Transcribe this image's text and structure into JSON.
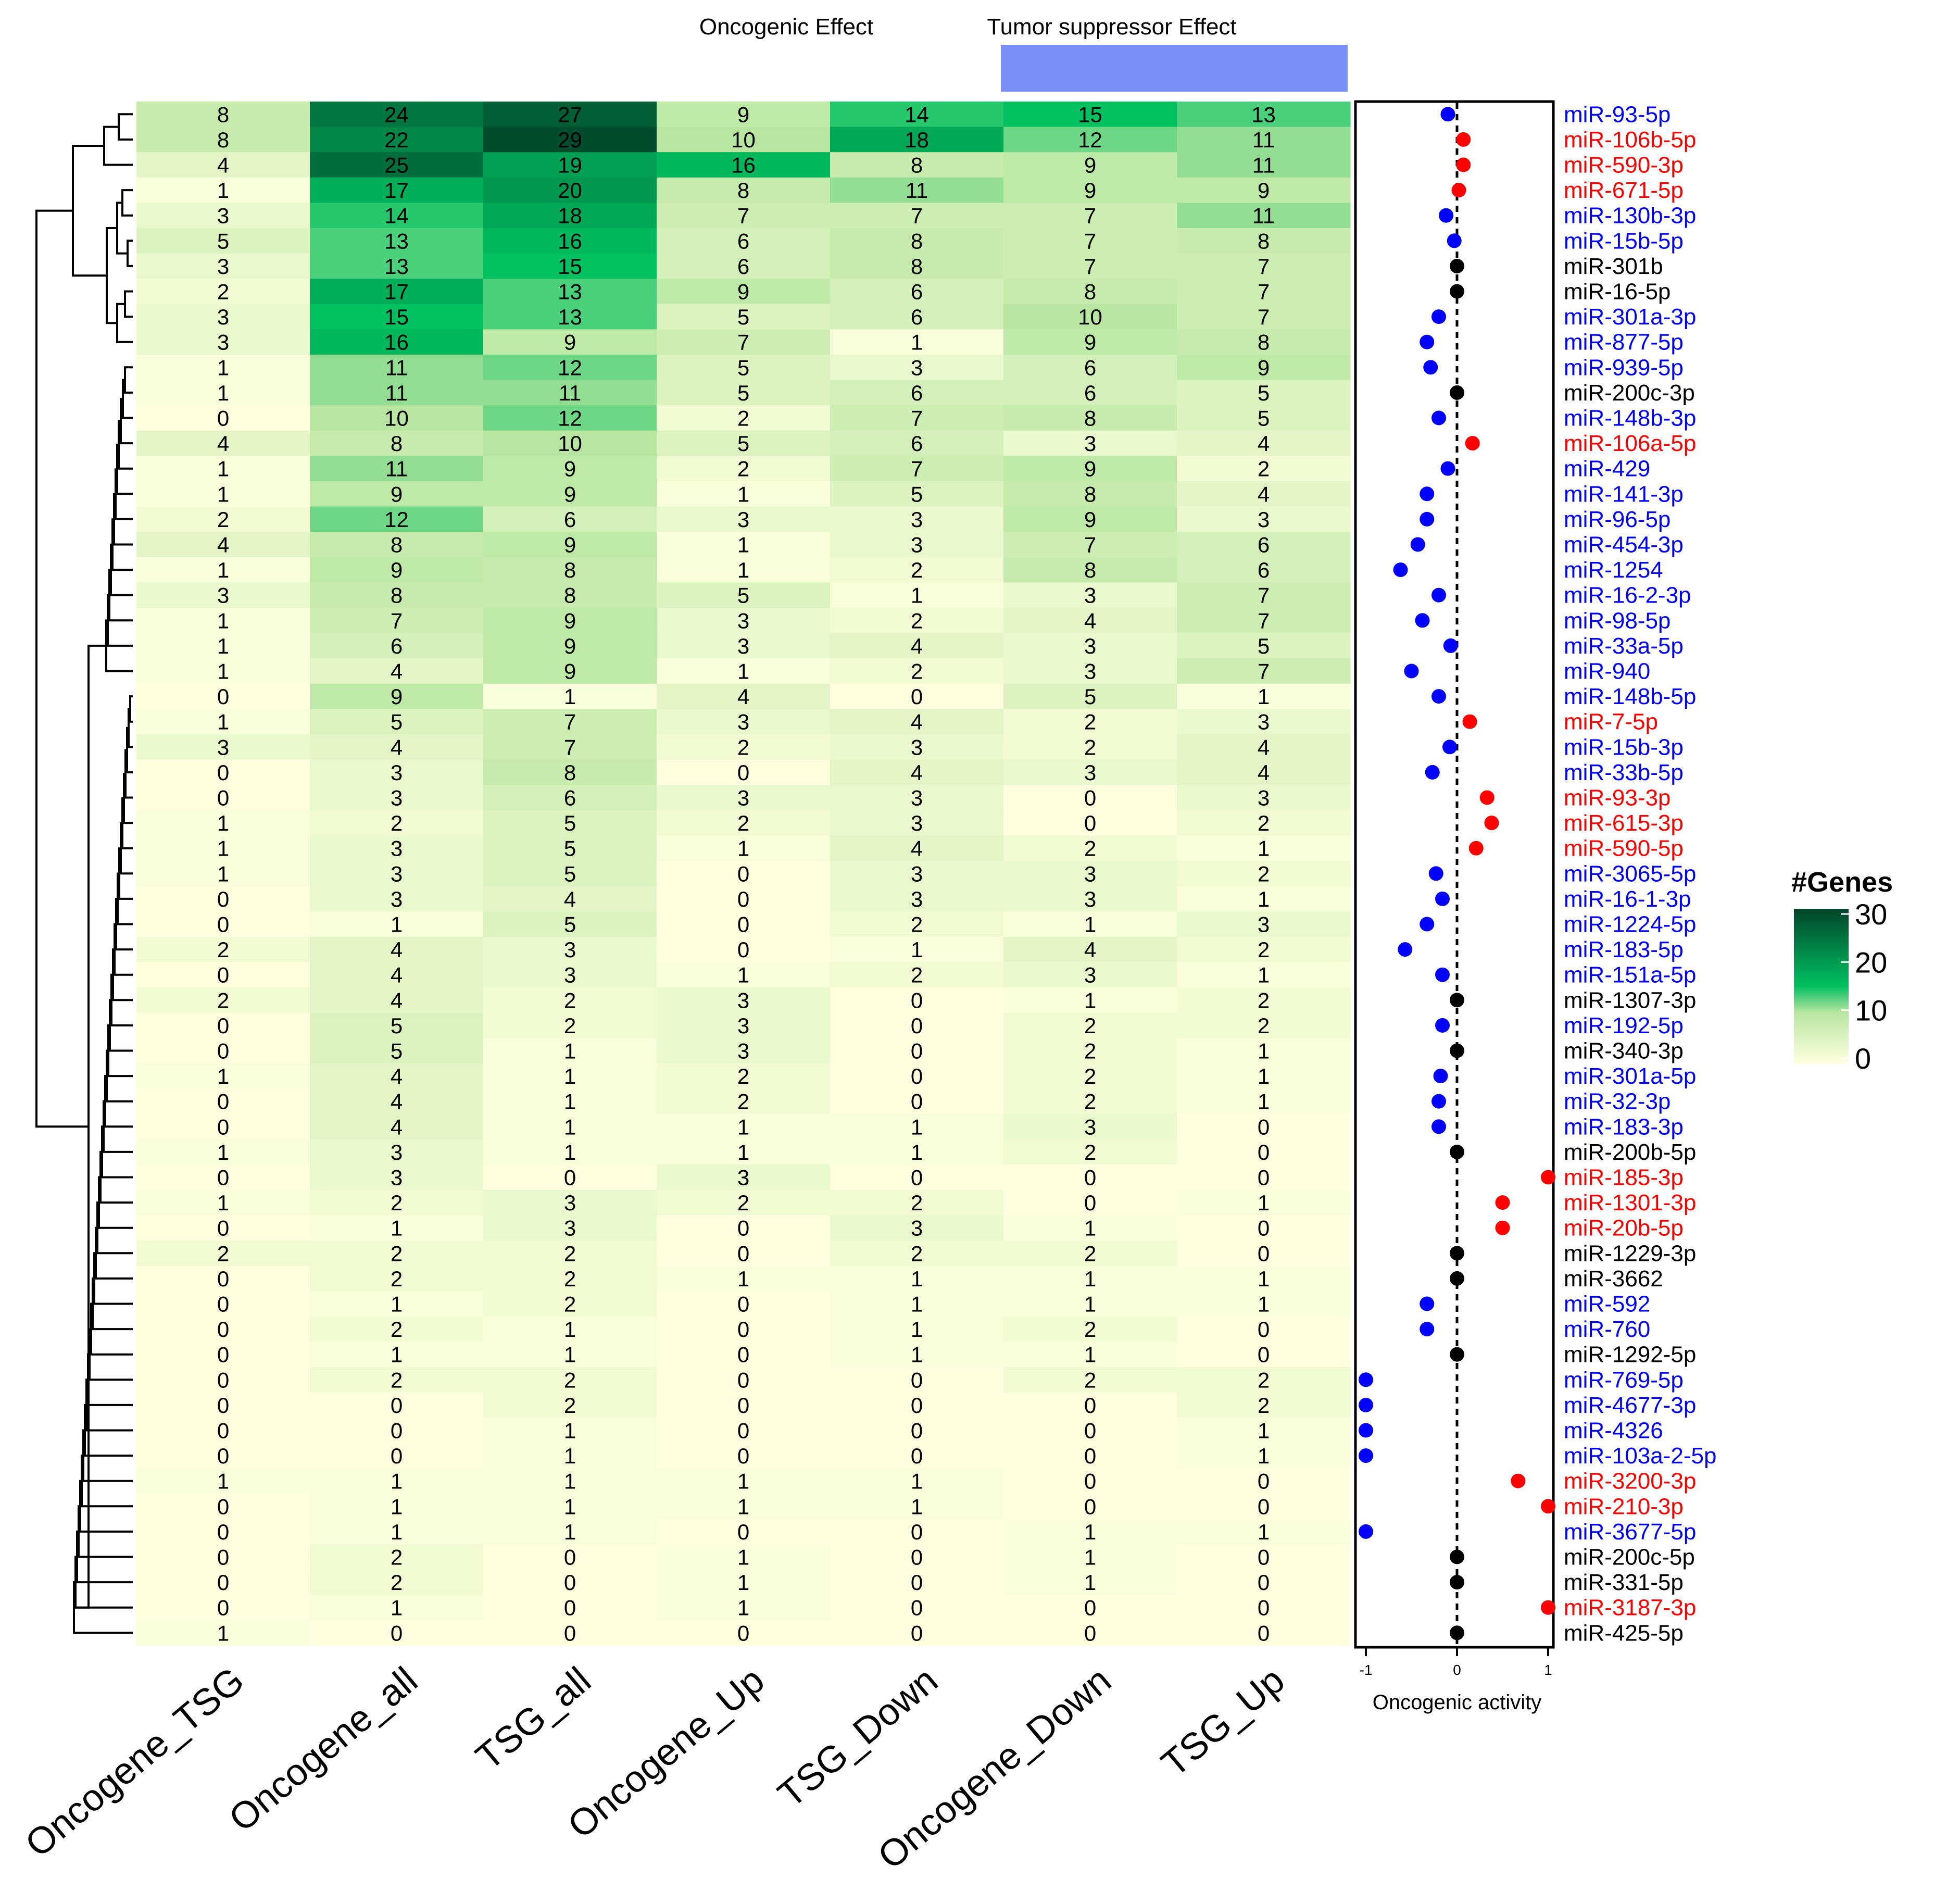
{
  "header": {
    "oncogenic_label": "Oncogenic Effect",
    "tsg_label": "Tumor suppressor Effect",
    "tsg_bar_color": "#7b8ff9"
  },
  "legend": {
    "title": "#Genes",
    "ticks": [
      0,
      10,
      20,
      30
    ],
    "tick_labels": [
      "0",
      "10",
      "20",
      "30"
    ]
  },
  "dot_axis": {
    "xlabel": "Oncogenic activity",
    "ticks": [
      -1,
      0,
      1
    ],
    "tick_labels": [
      "-1",
      "0",
      "1"
    ]
  },
  "colors": {
    "positive": "#ff0000",
    "negative": "#0000ff",
    "neutral": "#000000",
    "heat_low": "#ffffe0",
    "heat_mid": "#00c060",
    "heat_high": "#00452a"
  },
  "chart_data": [
    {
      "type": "heatmap",
      "columns": [
        "Oncogene_TSG",
        "Oncogene_all",
        "TSG_all",
        "Oncogene_Up",
        "TSG_Down",
        "Oncogene_Down",
        "TSG_Up"
      ],
      "rows": [
        "miR-93-5p",
        "miR-106b-5p",
        "miR-590-3p",
        "miR-671-5p",
        "miR-130b-3p",
        "miR-15b-5p",
        "miR-301b",
        "miR-16-5p",
        "miR-301a-3p",
        "miR-877-5p",
        "miR-939-5p",
        "miR-200c-3p",
        "miR-148b-3p",
        "miR-106a-5p",
        "miR-429",
        "miR-141-3p",
        "miR-96-5p",
        "miR-454-3p",
        "miR-1254",
        "miR-16-2-3p",
        "miR-98-5p",
        "miR-33a-5p",
        "miR-940",
        "miR-148b-5p",
        "miR-7-5p",
        "miR-15b-3p",
        "miR-33b-5p",
        "miR-93-3p",
        "miR-615-3p",
        "miR-590-5p",
        "miR-3065-5p",
        "miR-16-1-3p",
        "miR-1224-5p",
        "miR-183-5p",
        "miR-151a-5p",
        "miR-1307-3p",
        "miR-192-5p",
        "miR-340-3p",
        "miR-301a-5p",
        "miR-32-3p",
        "miR-183-3p",
        "miR-200b-5p",
        "miR-185-3p",
        "miR-1301-3p",
        "miR-20b-5p",
        "miR-1229-3p",
        "miR-3662",
        "miR-592",
        "miR-760",
        "miR-1292-5p",
        "miR-769-5p",
        "miR-4677-3p",
        "miR-4326",
        "miR-103a-2-5p",
        "miR-3200-3p",
        "miR-210-3p",
        "miR-3677-5p",
        "miR-200c-5p",
        "miR-331-5p",
        "miR-3187-3p",
        "miR-425-5p"
      ],
      "values": [
        [
          8,
          24,
          27,
          9,
          14,
          15,
          13
        ],
        [
          8,
          22,
          29,
          10,
          18,
          12,
          11
        ],
        [
          4,
          25,
          19,
          16,
          8,
          9,
          11
        ],
        [
          1,
          17,
          20,
          8,
          11,
          9,
          9
        ],
        [
          3,
          14,
          18,
          7,
          7,
          7,
          11
        ],
        [
          5,
          13,
          16,
          6,
          8,
          7,
          8
        ],
        [
          3,
          13,
          15,
          6,
          8,
          7,
          7
        ],
        [
          2,
          17,
          13,
          9,
          6,
          8,
          7
        ],
        [
          3,
          15,
          13,
          5,
          6,
          10,
          7
        ],
        [
          3,
          16,
          9,
          7,
          1,
          9,
          8
        ],
        [
          1,
          11,
          12,
          5,
          3,
          6,
          9
        ],
        [
          1,
          11,
          11,
          5,
          6,
          6,
          5
        ],
        [
          0,
          10,
          12,
          2,
          7,
          8,
          5
        ],
        [
          4,
          8,
          10,
          5,
          6,
          3,
          4
        ],
        [
          1,
          11,
          9,
          2,
          7,
          9,
          2
        ],
        [
          1,
          9,
          9,
          1,
          5,
          8,
          4
        ],
        [
          2,
          12,
          6,
          3,
          3,
          9,
          3
        ],
        [
          4,
          8,
          9,
          1,
          3,
          7,
          6
        ],
        [
          1,
          9,
          8,
          1,
          2,
          8,
          6
        ],
        [
          3,
          8,
          8,
          5,
          1,
          3,
          7
        ],
        [
          1,
          7,
          9,
          3,
          2,
          4,
          7
        ],
        [
          1,
          6,
          9,
          3,
          4,
          3,
          5
        ],
        [
          1,
          4,
          9,
          1,
          2,
          3,
          7
        ],
        [
          0,
          9,
          1,
          4,
          0,
          5,
          1
        ],
        [
          1,
          5,
          7,
          3,
          4,
          2,
          3
        ],
        [
          3,
          4,
          7,
          2,
          3,
          2,
          4
        ],
        [
          0,
          3,
          8,
          0,
          4,
          3,
          4
        ],
        [
          0,
          3,
          6,
          3,
          3,
          0,
          3
        ],
        [
          1,
          2,
          5,
          2,
          3,
          0,
          2
        ],
        [
          1,
          3,
          5,
          1,
          4,
          2,
          1
        ],
        [
          1,
          3,
          5,
          0,
          3,
          3,
          2
        ],
        [
          0,
          3,
          4,
          0,
          3,
          3,
          1
        ],
        [
          0,
          1,
          5,
          0,
          2,
          1,
          3
        ],
        [
          2,
          4,
          3,
          0,
          1,
          4,
          2
        ],
        [
          0,
          4,
          3,
          1,
          2,
          3,
          1
        ],
        [
          2,
          4,
          2,
          3,
          0,
          1,
          2
        ],
        [
          0,
          5,
          2,
          3,
          0,
          2,
          2
        ],
        [
          0,
          5,
          1,
          3,
          0,
          2,
          1
        ],
        [
          1,
          4,
          1,
          2,
          0,
          2,
          1
        ],
        [
          0,
          4,
          1,
          2,
          0,
          2,
          1
        ],
        [
          0,
          4,
          1,
          1,
          1,
          3,
          0
        ],
        [
          1,
          3,
          1,
          1,
          1,
          2,
          0
        ],
        [
          0,
          3,
          0,
          3,
          0,
          0,
          0
        ],
        [
          1,
          2,
          3,
          2,
          2,
          0,
          1
        ],
        [
          0,
          1,
          3,
          0,
          3,
          1,
          0
        ],
        [
          2,
          2,
          2,
          0,
          2,
          2,
          0
        ],
        [
          0,
          2,
          2,
          1,
          1,
          1,
          1
        ],
        [
          0,
          1,
          2,
          0,
          1,
          1,
          1
        ],
        [
          0,
          2,
          1,
          0,
          1,
          2,
          0
        ],
        [
          0,
          1,
          1,
          0,
          1,
          1,
          0
        ],
        [
          0,
          2,
          2,
          0,
          0,
          2,
          2
        ],
        [
          0,
          0,
          2,
          0,
          0,
          0,
          2
        ],
        [
          0,
          0,
          1,
          0,
          0,
          0,
          1
        ],
        [
          0,
          0,
          1,
          0,
          0,
          0,
          1
        ],
        [
          1,
          1,
          1,
          1,
          1,
          0,
          0
        ],
        [
          0,
          1,
          1,
          1,
          1,
          0,
          0
        ],
        [
          0,
          1,
          1,
          0,
          0,
          1,
          1
        ],
        [
          0,
          2,
          0,
          1,
          0,
          1,
          0
        ],
        [
          0,
          2,
          0,
          1,
          0,
          1,
          0
        ],
        [
          0,
          1,
          0,
          1,
          0,
          0,
          0
        ],
        [
          1,
          0,
          0,
          0,
          0,
          0,
          0
        ]
      ],
      "color_range": [
        0,
        30
      ]
    },
    {
      "type": "scatter",
      "xlabel": "Oncogenic activity",
      "xlim": [
        -1,
        1
      ],
      "reference_line_x": 0,
      "points": [
        {
          "label": "miR-93-5p",
          "x": -0.1,
          "class": "negative"
        },
        {
          "label": "miR-106b-5p",
          "x": 0.07,
          "class": "positive"
        },
        {
          "label": "miR-590-3p",
          "x": 0.07,
          "class": "positive"
        },
        {
          "label": "miR-671-5p",
          "x": 0.02,
          "class": "positive"
        },
        {
          "label": "miR-130b-3p",
          "x": -0.12,
          "class": "negative"
        },
        {
          "label": "miR-15b-5p",
          "x": -0.03,
          "class": "negative"
        },
        {
          "label": "miR-301b",
          "x": 0.0,
          "class": "neutral"
        },
        {
          "label": "miR-16-5p",
          "x": 0.0,
          "class": "neutral"
        },
        {
          "label": "miR-301a-3p",
          "x": -0.2,
          "class": "negative"
        },
        {
          "label": "miR-877-5p",
          "x": -0.33,
          "class": "negative"
        },
        {
          "label": "miR-939-5p",
          "x": -0.29,
          "class": "negative"
        },
        {
          "label": "miR-200c-3p",
          "x": 0.0,
          "class": "neutral"
        },
        {
          "label": "miR-148b-3p",
          "x": -0.2,
          "class": "negative"
        },
        {
          "label": "miR-106a-5p",
          "x": 0.17,
          "class": "positive"
        },
        {
          "label": "miR-429",
          "x": -0.1,
          "class": "negative"
        },
        {
          "label": "miR-141-3p",
          "x": -0.33,
          "class": "negative"
        },
        {
          "label": "miR-96-5p",
          "x": -0.33,
          "class": "negative"
        },
        {
          "label": "miR-454-3p",
          "x": -0.43,
          "class": "negative"
        },
        {
          "label": "miR-1254",
          "x": -0.62,
          "class": "negative"
        },
        {
          "label": "miR-16-2-3p",
          "x": -0.2,
          "class": "negative"
        },
        {
          "label": "miR-98-5p",
          "x": -0.38,
          "class": "negative"
        },
        {
          "label": "miR-33a-5p",
          "x": -0.07,
          "class": "negative"
        },
        {
          "label": "miR-940",
          "x": -0.5,
          "class": "negative"
        },
        {
          "label": "miR-148b-5p",
          "x": -0.2,
          "class": "negative"
        },
        {
          "label": "miR-7-5p",
          "x": 0.14,
          "class": "positive"
        },
        {
          "label": "miR-15b-3p",
          "x": -0.08,
          "class": "negative"
        },
        {
          "label": "miR-33b-5p",
          "x": -0.27,
          "class": "negative"
        },
        {
          "label": "miR-93-3p",
          "x": 0.33,
          "class": "positive"
        },
        {
          "label": "miR-615-3p",
          "x": 0.38,
          "class": "positive"
        },
        {
          "label": "miR-590-5p",
          "x": 0.21,
          "class": "positive"
        },
        {
          "label": "miR-3065-5p",
          "x": -0.23,
          "class": "negative"
        },
        {
          "label": "miR-16-1-3p",
          "x": -0.16,
          "class": "negative"
        },
        {
          "label": "miR-1224-5p",
          "x": -0.33,
          "class": "negative"
        },
        {
          "label": "miR-183-5p",
          "x": -0.57,
          "class": "negative"
        },
        {
          "label": "miR-151a-5p",
          "x": -0.16,
          "class": "negative"
        },
        {
          "label": "miR-1307-3p",
          "x": 0.0,
          "class": "neutral"
        },
        {
          "label": "miR-192-5p",
          "x": -0.16,
          "class": "negative"
        },
        {
          "label": "miR-340-3p",
          "x": 0.0,
          "class": "neutral"
        },
        {
          "label": "miR-301a-5p",
          "x": -0.18,
          "class": "negative"
        },
        {
          "label": "miR-32-3p",
          "x": -0.2,
          "class": "negative"
        },
        {
          "label": "miR-183-3p",
          "x": -0.2,
          "class": "negative"
        },
        {
          "label": "miR-200b-5p",
          "x": 0.0,
          "class": "neutral"
        },
        {
          "label": "miR-185-3p",
          "x": 1.0,
          "class": "positive"
        },
        {
          "label": "miR-1301-3p",
          "x": 0.5,
          "class": "positive"
        },
        {
          "label": "miR-20b-5p",
          "x": 0.5,
          "class": "positive"
        },
        {
          "label": "miR-1229-3p",
          "x": 0.0,
          "class": "neutral"
        },
        {
          "label": "miR-3662",
          "x": 0.0,
          "class": "neutral"
        },
        {
          "label": "miR-592",
          "x": -0.33,
          "class": "negative"
        },
        {
          "label": "miR-760",
          "x": -0.33,
          "class": "negative"
        },
        {
          "label": "miR-1292-5p",
          "x": 0.0,
          "class": "neutral"
        },
        {
          "label": "miR-769-5p",
          "x": -1.0,
          "class": "negative"
        },
        {
          "label": "miR-4677-3p",
          "x": -1.0,
          "class": "negative"
        },
        {
          "label": "miR-4326",
          "x": -1.0,
          "class": "negative"
        },
        {
          "label": "miR-103a-2-5p",
          "x": -1.0,
          "class": "negative"
        },
        {
          "label": "miR-3200-3p",
          "x": 0.67,
          "class": "positive"
        },
        {
          "label": "miR-210-3p",
          "x": 1.0,
          "class": "positive"
        },
        {
          "label": "miR-3677-5p",
          "x": -1.0,
          "class": "negative"
        },
        {
          "label": "miR-200c-5p",
          "x": 0.0,
          "class": "neutral"
        },
        {
          "label": "miR-331-5p",
          "x": 0.0,
          "class": "neutral"
        },
        {
          "label": "miR-3187-3p",
          "x": 1.0,
          "class": "positive"
        },
        {
          "label": "miR-425-5p",
          "x": 0.0,
          "class": "neutral"
        }
      ]
    }
  ]
}
